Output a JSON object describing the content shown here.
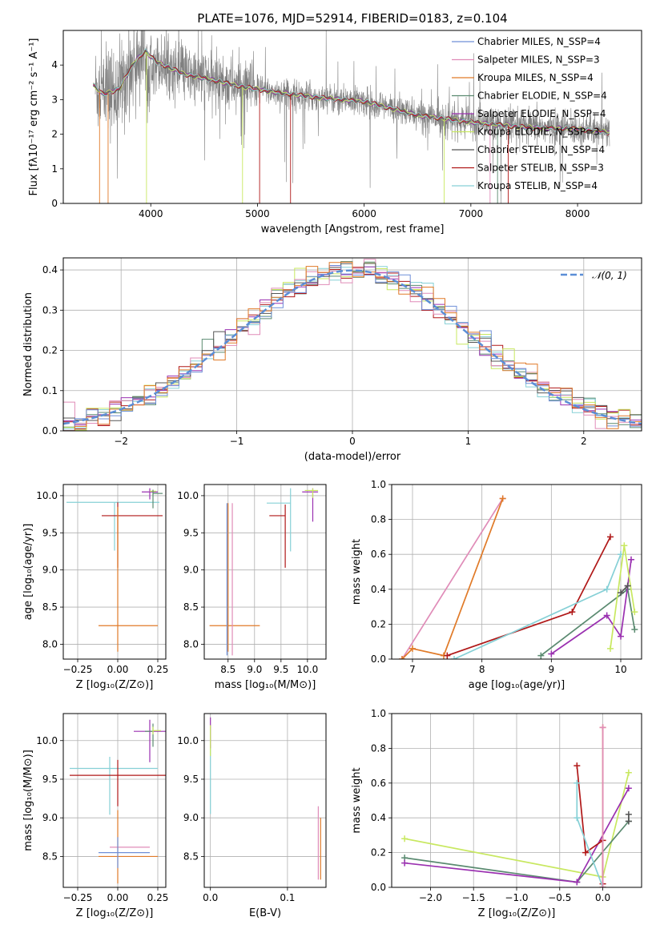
{
  "figure": {
    "title": "PLATE=1076, MJD=52914, FIBERID=0183, z=0.104"
  },
  "colors": {
    "models": [
      "#6f8fd8",
      "#e08cb8",
      "#e07a28",
      "#5a8a70",
      "#9a30b0",
      "#c8e860",
      "#555555",
      "#b01818",
      "#86d0d6"
    ],
    "data": "#808080",
    "gauss": "#5b8ed6"
  },
  "chart_data": [
    {
      "id": "spectrum",
      "type": "line",
      "xlabel": "wavelength [Angstrom, rest frame]",
      "ylabel": "Flux [fλ10⁻¹⁷ erg cm⁻² s⁻¹ A⁻¹]",
      "xlim": [
        3180,
        8600
      ],
      "ylim": [
        0,
        5
      ],
      "xticks": [
        4000,
        5000,
        6000,
        7000,
        8000
      ],
      "yticks": [
        0,
        1,
        2,
        3,
        4
      ],
      "legend_position": "top-right",
      "series": [
        {
          "name": "Chabrier MILES, N_SSP=4"
        },
        {
          "name": "Salpeter MILES, N_SSP=3"
        },
        {
          "name": "Kroupa MILES, N_SSP=4"
        },
        {
          "name": "Chabrier ELODIE, N_SSP=4"
        },
        {
          "name": "Salpeter ELODIE, N_SSP=4"
        },
        {
          "name": "Kroupa ELODIE, N_SSP=3"
        },
        {
          "name": "Chabrier STELIB, N_SSP=4"
        },
        {
          "name": "Salpeter STELIB, N_SSP=3"
        },
        {
          "name": "Kroupa STELIB, N_SSP=4"
        }
      ],
      "continuum": {
        "x": [
          3450,
          3550,
          3700,
          3850,
          3950,
          4050,
          4300,
          4600,
          4900,
          5200,
          5600,
          6000,
          6500,
          7000,
          7500,
          8000,
          8300
        ],
        "y": [
          3.45,
          3.15,
          3.3,
          4.1,
          4.4,
          4.1,
          3.75,
          3.55,
          3.35,
          3.2,
          3.05,
          2.95,
          2.55,
          2.35,
          2.2,
          2.15,
          2.05
        ]
      }
    },
    {
      "id": "residuals",
      "type": "line",
      "xlabel": "(data-model)/error",
      "ylabel": "Normed distribution",
      "xlim": [
        -2.5,
        2.5
      ],
      "ylim": [
        0,
        0.43
      ],
      "xticks": [
        -2,
        -1,
        0,
        1,
        2
      ],
      "yticks": [
        0.0,
        0.1,
        0.2,
        0.3,
        0.4
      ],
      "legend_position": "top-right",
      "series": [
        {
          "name": "𝒩(0, 1)",
          "mu": 0,
          "sigma": 1
        }
      ]
    },
    {
      "id": "age-Z",
      "type": "scatter",
      "xlabel": "Z [log₁₀(Z/Z⊙)]",
      "ylabel": "age  [log₁₀(age/yr)]",
      "xlim": [
        -0.34,
        0.3
      ],
      "ylim": [
        7.8,
        10.15
      ],
      "xticks": [
        -0.25,
        0.0,
        0.25
      ],
      "yticks": [
        8.0,
        8.5,
        9.0,
        9.5,
        10.0
      ],
      "points": [
        {
          "model": 8,
          "x": -0.02,
          "y": 9.91,
          "xerr": [
            0.3,
            0.28
          ],
          "yerr": [
            0.65,
            0.0
          ]
        },
        {
          "model": 7,
          "x": 0.0,
          "y": 9.73,
          "xerr": [
            0.1,
            0.28
          ],
          "yerr": [
            0.7,
            0.18
          ]
        },
        {
          "model": 2,
          "x": 0.0,
          "y": 8.25,
          "xerr": [
            0.12,
            0.25
          ],
          "yerr": [
            0.35,
            1.6
          ]
        },
        {
          "model": 4,
          "x": 0.2,
          "y": 10.05,
          "xerr": [
            0.05,
            0.05
          ],
          "yerr": [
            0.1,
            0.05
          ]
        },
        {
          "model": 5,
          "x": 0.22,
          "y": 10.06,
          "xerr": [
            0.02,
            0.02
          ],
          "yerr": [
            0.05,
            0.02
          ]
        },
        {
          "model": 3,
          "x": 0.22,
          "y": 10.03,
          "xerr": [
            0.0,
            0.06
          ],
          "yerr": [
            0.2,
            0.05
          ]
        }
      ]
    },
    {
      "id": "age-mass",
      "type": "scatter",
      "xlabel": "mass [log₁₀(M/M⊙)]",
      "ylabel": "",
      "xlim": [
        8.05,
        10.35
      ],
      "ylim": [
        7.8,
        10.15
      ],
      "xticks": [
        8.5,
        9.0,
        9.5,
        10.0
      ],
      "yticks": [
        8.0,
        8.5,
        9.0,
        9.5,
        10.0
      ],
      "points": [
        {
          "model": 8,
          "x": 9.68,
          "y": 9.9,
          "xerr": [
            0.45,
            0.0
          ],
          "yerr": [
            0.65,
            0.2
          ]
        },
        {
          "model": 7,
          "x": 9.58,
          "y": 9.73,
          "xerr": [
            0.3,
            0.0
          ],
          "yerr": [
            0.7,
            0.15
          ]
        },
        {
          "model": 2,
          "x": 8.5,
          "y": 8.25,
          "xerr": [
            0.35,
            0.6
          ],
          "yerr": [
            0.35,
            1.65
          ]
        },
        {
          "model": 4,
          "x": 10.1,
          "y": 10.05,
          "xerr": [
            0.2,
            0.1
          ],
          "yerr": [
            0.4,
            0.05
          ]
        },
        {
          "model": 5,
          "x": 10.1,
          "y": 10.07,
          "xerr": [
            0.15,
            0.1
          ],
          "yerr": [
            0.1,
            0.03
          ]
        },
        {
          "model": 1,
          "x": 8.58,
          "y": 8.8,
          "xerr": [
            0.0,
            0.0
          ],
          "yerr": [
            0.95,
            1.1
          ]
        },
        {
          "model": 0,
          "x": 8.48,
          "y": 8.8,
          "xerr": [
            0.0,
            0.0
          ],
          "yerr": [
            0.95,
            1.1
          ]
        }
      ]
    },
    {
      "id": "massweight-age",
      "type": "line",
      "xlabel": "age  [log₁₀(age/yr)]",
      "ylabel": "mass weight",
      "xlim": [
        6.7,
        10.3
      ],
      "ylim": [
        0,
        1
      ],
      "xticks": [
        7,
        8,
        9,
        10
      ],
      "yticks": [
        0.0,
        0.2,
        0.4,
        0.6,
        0.8,
        1.0
      ],
      "series": [
        {
          "model": 1,
          "x": [
            6.85,
            8.3
          ],
          "y": [
            0.0,
            0.92
          ]
        },
        {
          "model": 2,
          "x": [
            6.85,
            7.0,
            7.45,
            8.3
          ],
          "y": [
            0.0,
            0.06,
            0.02,
            0.92
          ]
        },
        {
          "model": 7,
          "x": [
            7.5,
            9.3,
            9.85
          ],
          "y": [
            0.02,
            0.27,
            0.7
          ]
        },
        {
          "model": 8,
          "x": [
            7.6,
            9.8,
            10.0
          ],
          "y": [
            0.0,
            0.4,
            0.6
          ]
        },
        {
          "model": 3,
          "x": [
            8.85,
            10.1,
            10.2
          ],
          "y": [
            0.02,
            0.4,
            0.17
          ]
        },
        {
          "model": 4,
          "x": [
            9.0,
            9.8,
            10.0,
            10.1,
            10.15
          ],
          "y": [
            0.03,
            0.25,
            0.13,
            0.42,
            0.57
          ]
        },
        {
          "model": 5,
          "x": [
            9.85,
            10.05,
            10.2
          ],
          "y": [
            0.06,
            0.65,
            0.27
          ]
        },
        {
          "model": 6,
          "x": [
            10.0,
            10.1
          ],
          "y": [
            0.38,
            0.42
          ]
        }
      ]
    },
    {
      "id": "mass-Z",
      "type": "scatter",
      "xlabel": "Z [log₁₀(Z/Z⊙)]",
      "ylabel": "mass [log₁₀(M/M⊙)]",
      "xlim": [
        -0.34,
        0.3
      ],
      "ylim": [
        8.1,
        10.35
      ],
      "xticks": [
        -0.25,
        0.0,
        0.25
      ],
      "yticks": [
        8.5,
        9.0,
        9.5,
        10.0
      ],
      "points": [
        {
          "model": 8,
          "x": -0.05,
          "y": 9.64,
          "xerr": [
            0.25,
            0.3
          ],
          "yerr": [
            0.6,
            0.15
          ]
        },
        {
          "model": 7,
          "x": 0.0,
          "y": 9.55,
          "xerr": [
            0.3,
            0.3
          ],
          "yerr": [
            0.4,
            0.2
          ]
        },
        {
          "model": 1,
          "x": 0.05,
          "y": 8.62,
          "xerr": [
            0.1,
            0.15
          ],
          "yerr": [
            0.0,
            0.0
          ]
        },
        {
          "model": 2,
          "x": 0.0,
          "y": 8.5,
          "xerr": [
            0.12,
            0.25
          ],
          "yerr": [
            0.35,
            0.6
          ]
        },
        {
          "model": 0,
          "x": 0.0,
          "y": 8.55,
          "xerr": [
            0.12,
            0.2
          ],
          "yerr": [
            0.2,
            0.2
          ]
        },
        {
          "model": 4,
          "x": 0.2,
          "y": 10.12,
          "xerr": [
            0.1,
            0.1
          ],
          "yerr": [
            0.4,
            0.15
          ]
        },
        {
          "model": 3,
          "x": 0.22,
          "y": 10.12,
          "xerr": [
            0.05,
            0.0
          ],
          "yerr": [
            0.2,
            0.1
          ]
        },
        {
          "model": 5,
          "x": 0.22,
          "y": 10.13,
          "xerr": [
            0.0,
            0.05
          ],
          "yerr": [
            0.05,
            0.05
          ]
        }
      ]
    },
    {
      "id": "mass-EBV",
      "type": "scatter",
      "xlabel": "E(B-V)",
      "ylabel": "",
      "xlim": [
        -0.008,
        0.15
      ],
      "ylim": [
        8.1,
        10.35
      ],
      "xticks": [
        0.0,
        0.1
      ],
      "yticks": [
        8.5,
        9.0,
        9.5,
        10.0
      ],
      "points": [
        {
          "model": 8,
          "x": 0.0,
          "y": 9.5,
          "xerr": [
            0,
            0
          ],
          "yerr": [
            0.45,
            0.45
          ]
        },
        {
          "model": 4,
          "x": 0.0,
          "y": 10.1,
          "xerr": [
            0,
            0
          ],
          "yerr": [
            0.2,
            0.2
          ]
        },
        {
          "model": 5,
          "x": 0.0,
          "y": 10.0,
          "xerr": [
            0,
            0
          ],
          "yerr": [
            0.2,
            0.2
          ]
        },
        {
          "model": 1,
          "x": 0.14,
          "y": 8.7,
          "xerr": [
            0,
            0
          ],
          "yerr": [
            0.5,
            0.45
          ]
        },
        {
          "model": 2,
          "x": 0.143,
          "y": 8.55,
          "xerr": [
            0,
            0
          ],
          "yerr": [
            0.35,
            0.45
          ]
        }
      ]
    },
    {
      "id": "massweight-Z",
      "type": "line",
      "xlabel": "Z [log₁₀(Z/Z⊙)]",
      "ylabel": "mass weight",
      "xlim": [
        -2.45,
        0.45
      ],
      "ylim": [
        0,
        1
      ],
      "xticks": [
        -2.0,
        -1.5,
        -1.0,
        -0.5,
        0.0
      ],
      "yticks": [
        0.0,
        0.2,
        0.4,
        0.6,
        0.8,
        1.0
      ],
      "series": [
        {
          "model": 5,
          "x": [
            -2.3,
            0.0,
            0.3
          ],
          "y": [
            0.28,
            0.06,
            0.66
          ]
        },
        {
          "model": 3,
          "x": [
            -2.3,
            -0.3,
            0.3
          ],
          "y": [
            0.17,
            0.03,
            0.38
          ]
        },
        {
          "model": 4,
          "x": [
            -2.3,
            -0.3,
            0.3
          ],
          "y": [
            0.14,
            0.03,
            0.57
          ]
        },
        {
          "model": 7,
          "x": [
            -0.3,
            -0.2,
            0.0,
            0.0
          ],
          "y": [
            0.7,
            0.2,
            0.27,
            0.02
          ]
        },
        {
          "model": 8,
          "x": [
            -0.3,
            -0.3,
            0.0
          ],
          "y": [
            0.6,
            0.4,
            0.0
          ]
        },
        {
          "model": 2,
          "x": [
            0.0,
            0.0
          ],
          "y": [
            0.92,
            0.0
          ]
        },
        {
          "model": 1,
          "x": [
            0.0,
            0.0
          ],
          "y": [
            0.92,
            0.0
          ]
        },
        {
          "model": 6,
          "x": [
            0.3,
            0.3
          ],
          "y": [
            0.42,
            0.38
          ]
        }
      ]
    }
  ]
}
